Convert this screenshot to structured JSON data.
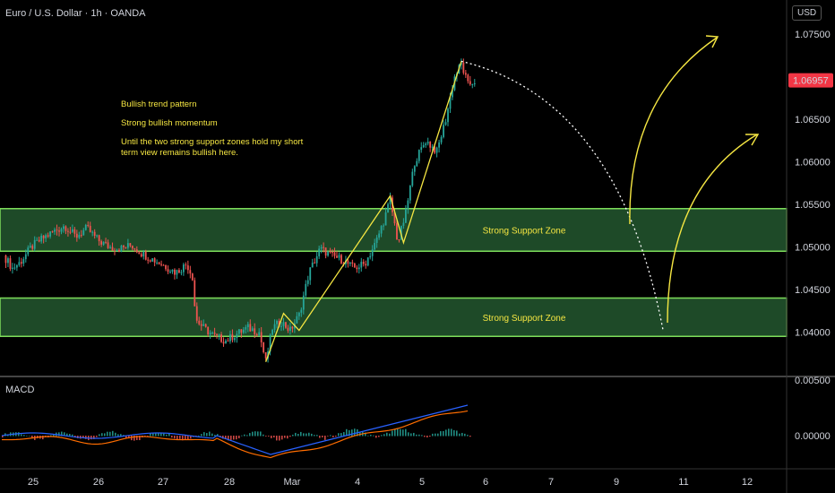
{
  "header": {
    "symbol_title": "Euro / U.S. Dollar · 1h · OANDA",
    "currency_button": "USD"
  },
  "price_axis": {
    "ticks": [
      "1.07500",
      "1.07000",
      "1.06500",
      "1.06000",
      "1.05500",
      "1.05000",
      "1.04500",
      "1.04000"
    ],
    "current_price": "1.06957",
    "current_price_color": "#f23645"
  },
  "macd_axis": {
    "ticks": [
      "0.00500",
      "0.00000"
    ]
  },
  "macd_panel": {
    "title": "MACD"
  },
  "time_axis": {
    "ticks": [
      "25",
      "26",
      "27",
      "28",
      "Mar",
      "4",
      "5",
      "6",
      "7",
      "9",
      "11",
      "12"
    ]
  },
  "annotations": {
    "lines": [
      "Bullish trend pattern",
      "Strong bullish momentum",
      "Until the two strong support zones hold my short",
      "term view remains bullish here."
    ]
  },
  "zones": [
    {
      "label": "Strong Support Zone",
      "low": 1.0495,
      "high": 1.0545
    },
    {
      "label": "Strong Support Zone",
      "low": 1.0395,
      "high": 1.044
    }
  ],
  "colors": {
    "up": "#26a69a",
    "down": "#ef5350",
    "zone_fill": "#1e4a28",
    "zone_border": "#7ddc5a",
    "annotation": "#f5e642",
    "macd_line": "#2962ff",
    "signal_line": "#ff6d00"
  },
  "chart_data": {
    "type": "candlestick",
    "ylim": [
      1.035,
      1.079
    ],
    "grid": false,
    "price_path": [
      {
        "t": 0.0,
        "p": 1.049
      },
      {
        "t": 0.08,
        "p": 1.0475
      },
      {
        "t": 0.15,
        "p": 1.0482
      },
      {
        "t": 0.25,
        "p": 1.05
      },
      {
        "t": 0.35,
        "p": 1.051
      },
      {
        "t": 0.45,
        "p": 1.0518
      },
      {
        "t": 0.55,
        "p": 1.0525
      },
      {
        "t": 0.65,
        "p": 1.0512
      },
      {
        "t": 0.75,
        "p": 1.0522
      },
      {
        "t": 0.85,
        "p": 1.0508
      },
      {
        "t": 0.95,
        "p": 1.05
      },
      {
        "t": 1.05,
        "p": 1.0498
      },
      {
        "t": 1.15,
        "p": 1.0502
      },
      {
        "t": 1.25,
        "p": 1.0492
      },
      {
        "t": 1.35,
        "p": 1.0485
      },
      {
        "t": 1.45,
        "p": 1.0478
      },
      {
        "t": 1.55,
        "p": 1.047
      },
      {
        "t": 1.65,
        "p": 1.048
      },
      {
        "t": 1.7,
        "p": 1.0465
      },
      {
        "t": 1.73,
        "p": 1.0415
      },
      {
        "t": 1.8,
        "p": 1.0405
      },
      {
        "t": 1.9,
        "p": 1.0395
      },
      {
        "t": 2.0,
        "p": 1.039
      },
      {
        "t": 2.1,
        "p": 1.0398
      },
      {
        "t": 2.2,
        "p": 1.0405
      },
      {
        "t": 2.3,
        "p": 1.04
      },
      {
        "t": 2.36,
        "p": 1.0365
      },
      {
        "t": 2.42,
        "p": 1.0405
      },
      {
        "t": 2.5,
        "p": 1.0412
      },
      {
        "t": 2.58,
        "p": 1.0402
      },
      {
        "t": 2.66,
        "p": 1.042
      },
      {
        "t": 2.75,
        "p": 1.047
      },
      {
        "t": 2.85,
        "p": 1.0498
      },
      {
        "t": 2.95,
        "p": 1.049
      },
      {
        "t": 3.05,
        "p": 1.0485
      },
      {
        "t": 3.15,
        "p": 1.0475
      },
      {
        "t": 3.25,
        "p": 1.048
      },
      {
        "t": 3.35,
        "p": 1.0505
      },
      {
        "t": 3.42,
        "p": 1.053
      },
      {
        "t": 3.48,
        "p": 1.0555
      },
      {
        "t": 3.55,
        "p": 1.0505
      },
      {
        "t": 3.62,
        "p": 1.054
      },
      {
        "t": 3.7,
        "p": 1.06
      },
      {
        "t": 3.8,
        "p": 1.0625
      },
      {
        "t": 3.9,
        "p": 1.0612
      },
      {
        "t": 3.98,
        "p": 1.065
      },
      {
        "t": 4.06,
        "p": 1.07
      },
      {
        "t": 4.12,
        "p": 1.0715
      },
      {
        "t": 4.18,
        "p": 1.069
      },
      {
        "t": 4.24,
        "p": 1.0695
      }
    ]
  }
}
